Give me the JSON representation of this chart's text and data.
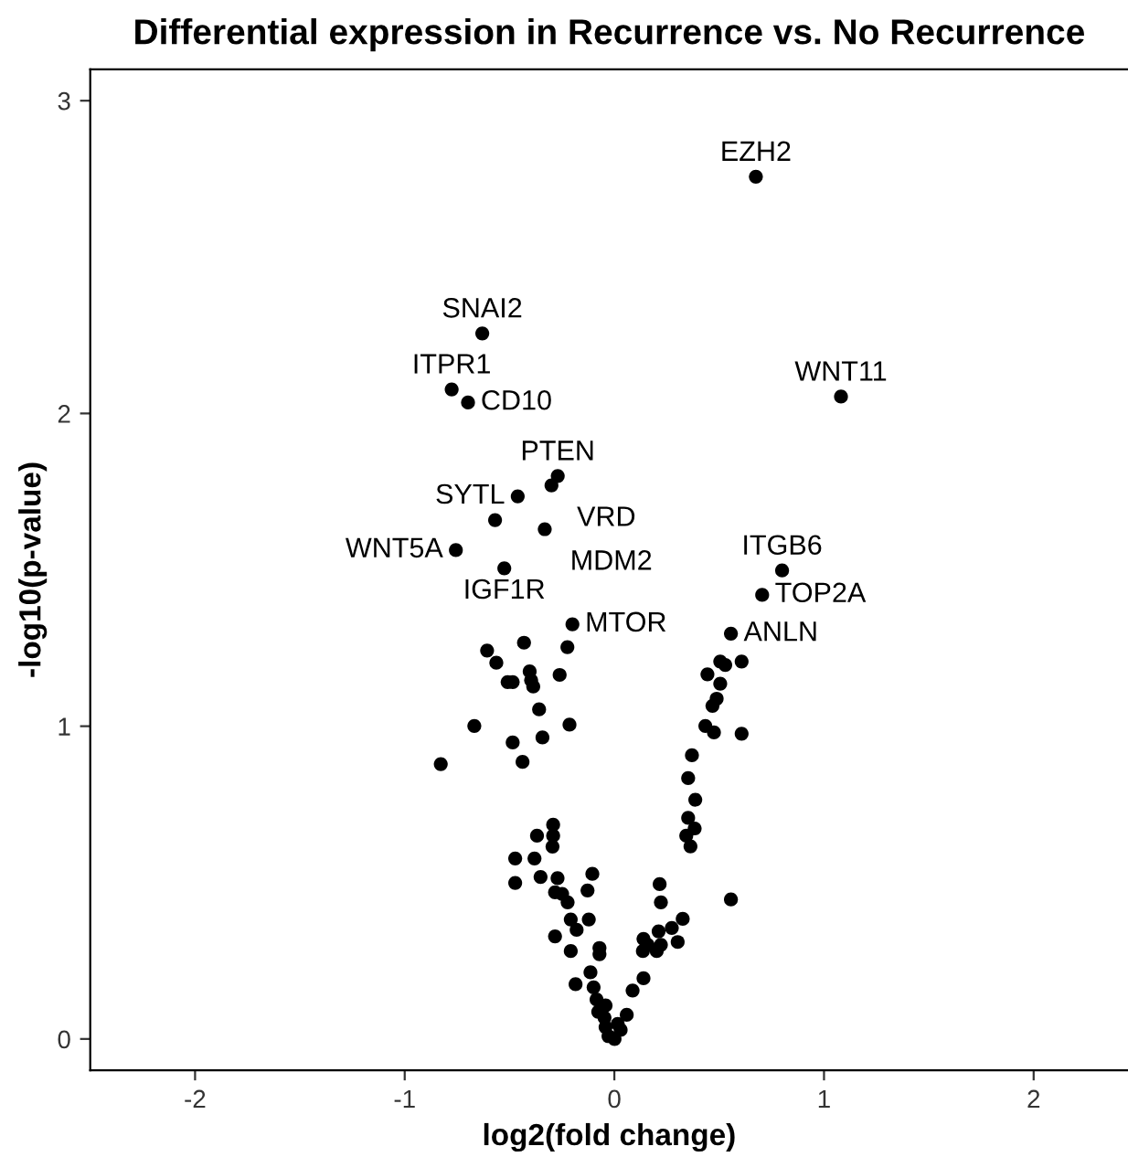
{
  "chart_data": {
    "type": "scatter",
    "title": "Differential expression in Recurrence vs. No Recurrence",
    "xlabel": "log2(fold change)",
    "ylabel": "-log10(p-value)",
    "xlim": [
      -2.5,
      2.45
    ],
    "xticks": [
      -2,
      -1,
      0,
      1,
      2
    ],
    "ylim": [
      -0.1,
      3.1
    ],
    "yticks": [
      0,
      1,
      2,
      3
    ],
    "grid": false,
    "marker": "circle",
    "series": [
      {
        "color": "#000000",
        "x": [
          0.675,
          -0.63,
          -0.776,
          -0.698,
          1.081,
          -0.27,
          -0.3,
          -0.461,
          -0.332,
          -0.569,
          -0.756,
          -0.525,
          -0.2,
          0.8,
          0.705,
          0.556,
          -0.607,
          -0.563,
          -0.431,
          -0.509,
          -0.485,
          -0.404,
          -0.397,
          -0.387,
          -0.261,
          -0.224,
          -0.359,
          -0.668,
          -0.214,
          -0.485,
          -0.343,
          -0.438,
          -0.828,
          0.505,
          0.529,
          0.607,
          0.444,
          0.505,
          0.488,
          0.468,
          0.434,
          0.475,
          0.607,
          0.37,
          0.352,
          0.386,
          0.352,
          0.383,
          0.343,
          0.363,
          -0.292,
          -0.292,
          -0.295,
          -0.369,
          -0.473,
          -0.381,
          -0.473,
          -0.352,
          -0.271,
          -0.105,
          -0.283,
          -0.249,
          -0.128,
          -0.223,
          -0.208,
          -0.122,
          -0.18,
          -0.283,
          -0.208,
          -0.071,
          -0.071,
          -0.185,
          -0.114,
          -0.099,
          -0.085,
          -0.077,
          -0.047,
          -0.042,
          0.001,
          0.03,
          0.059,
          0.087,
          0.139,
          0.136,
          0.139,
          0.159,
          0.211,
          0.202,
          0.222,
          0.274,
          0.326,
          0.302,
          0.222,
          0.216,
          0.556,
          -0.042,
          0.016,
          -0.028
        ],
        "values": [
          2.757,
          2.256,
          2.077,
          2.035,
          2.054,
          1.8,
          1.77,
          1.735,
          1.63,
          1.659,
          1.563,
          1.505,
          1.326,
          1.498,
          1.42,
          1.296,
          1.242,
          1.203,
          1.267,
          1.141,
          1.141,
          1.175,
          1.147,
          1.127,
          1.164,
          1.253,
          1.054,
          1.001,
          1.005,
          0.948,
          0.964,
          0.886,
          0.879,
          1.207,
          1.196,
          1.207,
          1.166,
          1.136,
          1.088,
          1.065,
          1.001,
          0.98,
          0.976,
          0.907,
          0.834,
          0.765,
          0.707,
          0.673,
          0.65,
          0.616,
          0.685,
          0.65,
          0.615,
          0.65,
          0.577,
          0.577,
          0.499,
          0.518,
          0.514,
          0.528,
          0.469,
          0.464,
          0.475,
          0.437,
          0.382,
          0.382,
          0.349,
          0.328,
          0.281,
          0.291,
          0.271,
          0.175,
          0.213,
          0.165,
          0.126,
          0.087,
          0.068,
          0.038,
          0.0,
          0.029,
          0.077,
          0.155,
          0.194,
          0.281,
          0.32,
          0.301,
          0.344,
          0.281,
          0.301,
          0.355,
          0.384,
          0.31,
          0.437,
          0.495,
          0.446,
          0.107,
          0.048,
          0.009
        ]
      }
    ],
    "annotations": [
      {
        "text": "EZH2",
        "x": 0.675,
        "y": 2.757
      },
      {
        "text": "SNAI2",
        "x": -0.63,
        "y": 2.256
      },
      {
        "text": "ITPR1",
        "x": -0.776,
        "y": 2.077
      },
      {
        "text": "CD10",
        "x": -0.698,
        "y": 2.035
      },
      {
        "text": "WNT11",
        "x": 1.081,
        "y": 2.054
      },
      {
        "text": "PTEN",
        "x": -0.27,
        "y": 1.8
      },
      {
        "text": "VRD",
        "x": -0.3,
        "y": 1.77
      },
      {
        "text": "SYTL",
        "x": -0.461,
        "y": 1.735
      },
      {
        "text": "MDM2",
        "x": -0.332,
        "y": 1.63
      },
      {
        "text": "WNT5A",
        "x": -0.756,
        "y": 1.563
      },
      {
        "text": "IGF1R",
        "x": -0.525,
        "y": 1.505
      },
      {
        "text": "MTOR",
        "x": -0.2,
        "y": 1.326
      },
      {
        "text": "ITGB6",
        "x": 0.8,
        "y": 1.498
      },
      {
        "text": "TOP2A",
        "x": 0.705,
        "y": 1.42
      },
      {
        "text": "ANLN",
        "x": 0.556,
        "y": 1.296
      }
    ]
  }
}
